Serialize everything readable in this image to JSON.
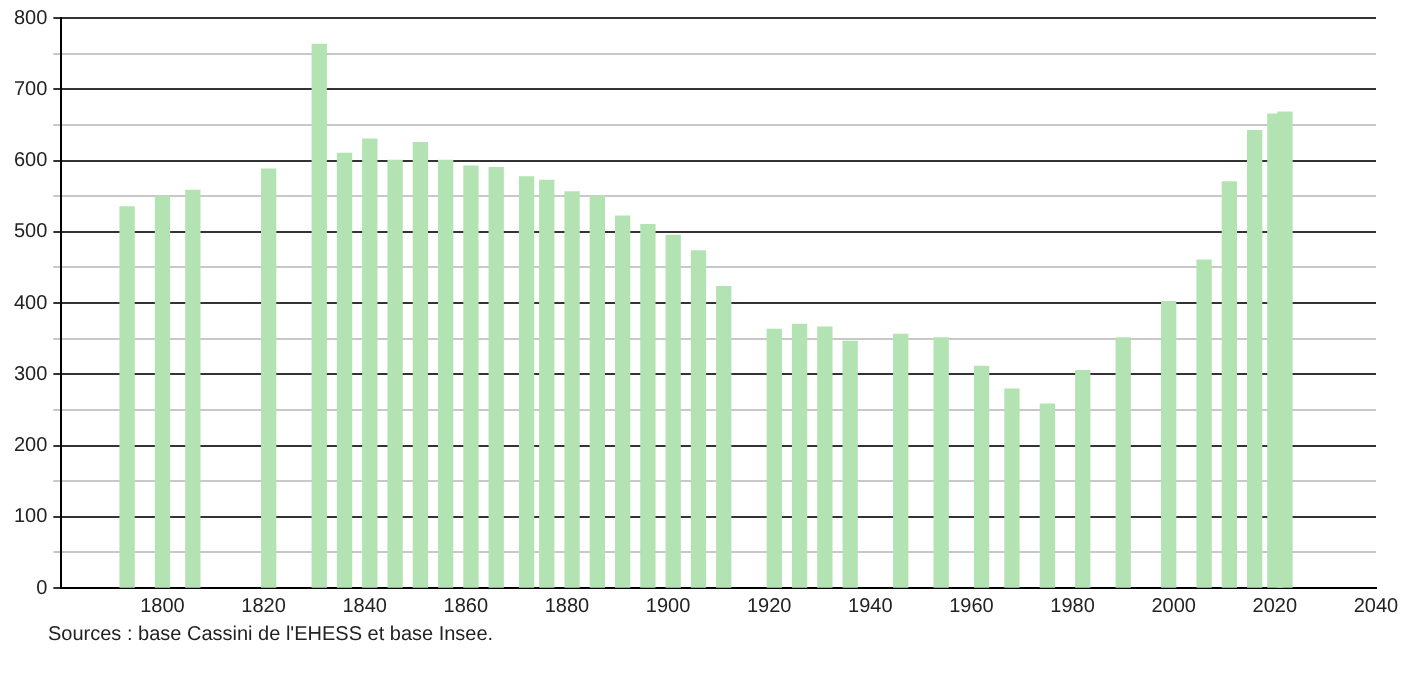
{
  "chart_data": {
    "type": "bar",
    "x": [
      1793,
      1800,
      1806,
      1821,
      1831,
      1836,
      1841,
      1846,
      1851,
      1856,
      1861,
      1866,
      1872,
      1876,
      1881,
      1886,
      1891,
      1896,
      1901,
      1906,
      1911,
      1921,
      1926,
      1931,
      1936,
      1946,
      1954,
      1962,
      1968,
      1975,
      1982,
      1990,
      1999,
      2006,
      2011,
      2016,
      2020,
      2022
    ],
    "values": [
      535,
      550,
      558,
      588,
      763,
      610,
      630,
      600,
      625,
      600,
      592,
      590,
      577,
      572,
      556,
      550,
      522,
      510,
      495,
      473,
      423,
      363,
      370,
      366,
      346,
      356,
      351,
      311,
      279,
      258,
      305,
      351,
      402,
      460,
      570,
      642,
      665,
      668
    ],
    "color": "#b3e3b3",
    "xlim": [
      1780,
      2040
    ],
    "xticks": [
      1800,
      1820,
      1840,
      1860,
      1880,
      1900,
      1920,
      1940,
      1960,
      1980,
      2000,
      2020,
      2040
    ],
    "ylim": [
      0,
      800
    ],
    "yticks": [
      0,
      {
        "value": 50,
        "label": null
      },
      100,
      {
        "value": 150,
        "label": null
      },
      200,
      {
        "value": 250,
        "label": null
      },
      300,
      {
        "value": 350,
        "label": null
      },
      400,
      {
        "value": 450,
        "label": null
      },
      500,
      {
        "value": 550,
        "label": null
      },
      600,
      {
        "value": 650,
        "label": null
      },
      700,
      {
        "value": 750,
        "label": null
      },
      800
    ],
    "grid": "y",
    "legend": false,
    "annotations": [
      "Sources : base Cassini de l'EHESS et base Insee."
    ]
  }
}
